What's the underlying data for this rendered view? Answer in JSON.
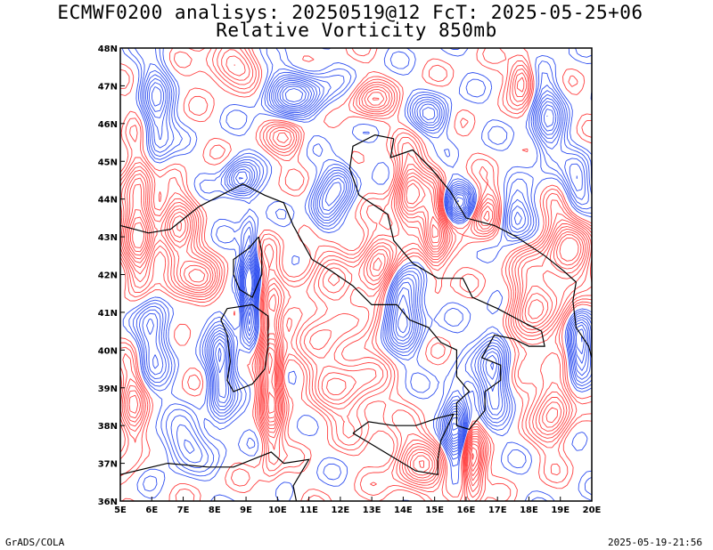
{
  "title_line1": "ECMWF0200 analisys: 20250519@12 FcT: 2025-05-25+06",
  "title_line2": "Relative Vorticity 850mb",
  "credit_left": "GrADS/COLA",
  "credit_right": "2025-05-19-21:56",
  "map": {
    "lon_range": [
      5,
      20
    ],
    "lat_range": [
      36,
      48
    ],
    "lat_labels": [
      "48N",
      "47N",
      "46N",
      "45N",
      "44N",
      "43N",
      "42N",
      "41N",
      "40N",
      "39N",
      "38N",
      "37N",
      "36N"
    ],
    "lon_labels": [
      "5E",
      "6E",
      "7E",
      "8E",
      "9E",
      "10E",
      "11E",
      "12E",
      "13E",
      "14E",
      "15E",
      "16E",
      "17E",
      "18E",
      "19E",
      "20E"
    ],
    "colors": {
      "positive": "#ff4040",
      "negative": "#3050f0",
      "coast": "#000000",
      "background": "#ffffff"
    }
  }
}
